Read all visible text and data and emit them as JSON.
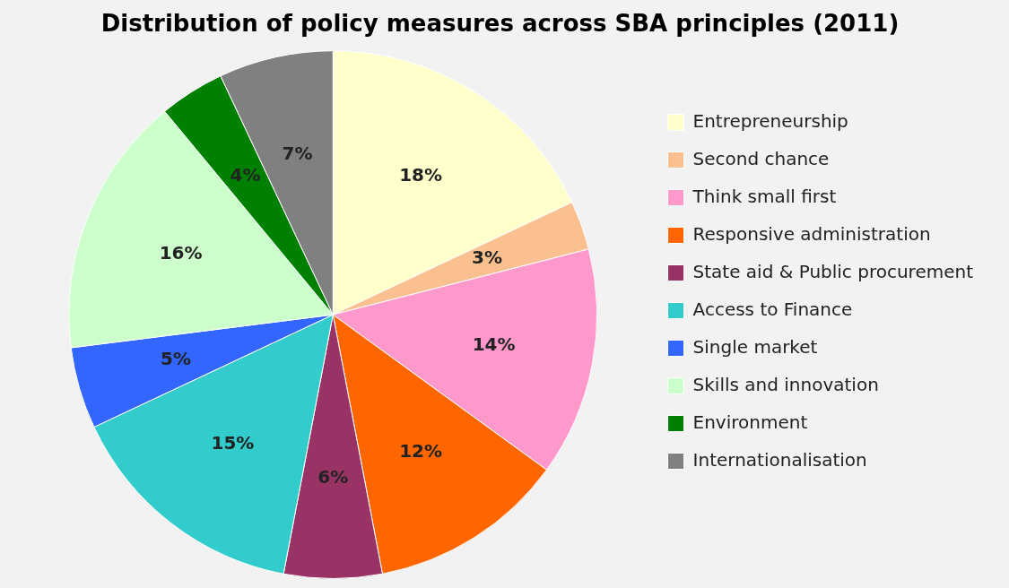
{
  "chart_data": {
    "type": "pie",
    "title": "Distribution of policy measures across SBA principles (2011)",
    "categories": [
      "Entrepreneurship",
      "Second chance",
      "Think small first",
      "Responsive administration",
      "State aid & Public procurement",
      "Access to Finance",
      "Single market",
      "Skills and innovation",
      "Environment",
      "Internationalisation"
    ],
    "values": [
      18,
      3,
      14,
      12,
      6,
      15,
      5,
      16,
      4,
      7
    ],
    "value_labels": [
      "18%",
      "3%",
      "14%",
      "12%",
      "6%",
      "15%",
      "5%",
      "16%",
      "4%",
      "7%"
    ],
    "colors": [
      "#ffffcc",
      "#fac090",
      "#ff99cc",
      "#ff6600",
      "#993366",
      "#33cccc",
      "#3366ff",
      "#ccffcc",
      "#008000",
      "#808080"
    ],
    "legend": "right"
  }
}
